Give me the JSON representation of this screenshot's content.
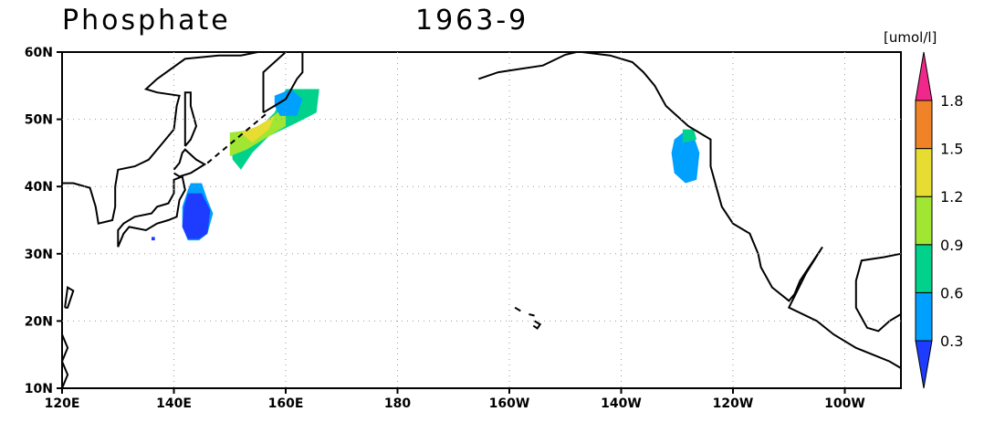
{
  "title": "Phosphate",
  "period": "1963-9",
  "unit": "[umol/l]",
  "lon_ticks": [
    "120E",
    "140E",
    "160E",
    "180",
    "160W",
    "140W",
    "120W",
    "100W"
  ],
  "lat_ticks": [
    "60N",
    "50N",
    "40N",
    "30N",
    "20N",
    "10N"
  ],
  "colorbar": {
    "levels": [
      0.3,
      0.6,
      0.9,
      1.2,
      1.5,
      1.8
    ],
    "colors": [
      "#1e3cff",
      "#00a0ff",
      "#00d28c",
      "#a0e632",
      "#e6dc32",
      "#f08228",
      "#f0288c"
    ]
  }
}
